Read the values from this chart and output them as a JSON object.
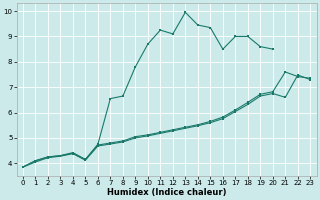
{
  "xlabel": "Humidex (Indice chaleur)",
  "bg_color": "#cceaea",
  "line_color": "#1a7a6a",
  "grid_color": "#ffffff",
  "xlim": [
    -0.5,
    23.5
  ],
  "ylim": [
    3.5,
    10.3
  ],
  "yticks": [
    4,
    5,
    6,
    7,
    8,
    9,
    10
  ],
  "xticks": [
    0,
    1,
    2,
    3,
    4,
    5,
    6,
    7,
    8,
    9,
    10,
    11,
    12,
    13,
    14,
    15,
    16,
    17,
    18,
    19,
    20,
    21,
    22,
    23
  ],
  "line1_x": [
    0,
    1,
    2,
    3,
    4,
    5,
    6,
    7,
    8,
    9,
    10,
    11,
    12,
    13,
    14,
    15,
    16,
    17,
    18,
    19,
    20
  ],
  "line1_y": [
    3.85,
    4.1,
    4.25,
    4.3,
    4.4,
    4.15,
    4.75,
    6.55,
    6.65,
    7.8,
    8.7,
    9.25,
    9.1,
    9.95,
    9.45,
    9.35,
    8.5,
    9.0,
    9.0,
    8.6,
    8.5
  ],
  "line2_x": [
    0,
    1,
    2,
    3,
    4,
    5,
    6,
    7,
    8,
    9,
    10,
    11,
    12,
    13,
    14,
    15,
    16,
    17,
    18,
    19,
    20,
    21,
    22,
    23
  ],
  "line2_y": [
    3.85,
    4.1,
    4.25,
    4.3,
    4.42,
    4.15,
    4.72,
    4.8,
    4.88,
    5.05,
    5.12,
    5.22,
    5.32,
    5.42,
    5.52,
    5.65,
    5.82,
    6.1,
    6.4,
    6.72,
    6.82,
    7.6,
    7.42,
    7.35
  ],
  "line3_x": [
    0,
    1,
    2,
    3,
    4,
    5,
    6,
    7,
    8,
    9,
    10,
    11,
    12,
    13,
    14,
    15,
    16,
    17,
    18,
    19,
    20,
    21,
    22,
    23
  ],
  "line3_y": [
    3.85,
    4.05,
    4.22,
    4.28,
    4.38,
    4.12,
    4.68,
    4.76,
    4.84,
    5.0,
    5.08,
    5.18,
    5.28,
    5.38,
    5.48,
    5.6,
    5.76,
    6.04,
    6.32,
    6.65,
    6.75,
    6.6,
    7.48,
    7.3
  ]
}
